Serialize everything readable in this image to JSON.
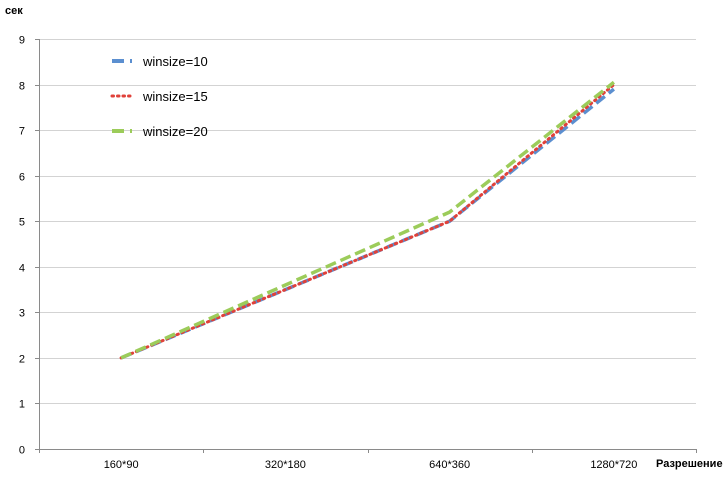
{
  "chart_data": {
    "type": "line",
    "title": "",
    "ylabel": "сек",
    "xlabel": "Разрешение",
    "categories": [
      "160*90",
      "320*180",
      "640*360",
      "1280*720"
    ],
    "ylim": [
      0,
      9
    ],
    "yticks": [
      0,
      1,
      2,
      3,
      4,
      5,
      6,
      7,
      8,
      9
    ],
    "grid": true,
    "legend_position": "top-left",
    "series": [
      {
        "name": "winsize=10",
        "values": [
          2.0,
          3.5,
          5.0,
          7.9
        ],
        "color": "#5b8fd0",
        "style": "dash"
      },
      {
        "name": "winsize=15",
        "values": [
          2.0,
          3.5,
          5.0,
          8.0
        ],
        "color": "#e0413a",
        "style": "dot"
      },
      {
        "name": "winsize=20",
        "values": [
          2.0,
          3.6,
          5.2,
          8.05
        ],
        "color": "#9ccc5a",
        "style": "dash"
      }
    ]
  }
}
